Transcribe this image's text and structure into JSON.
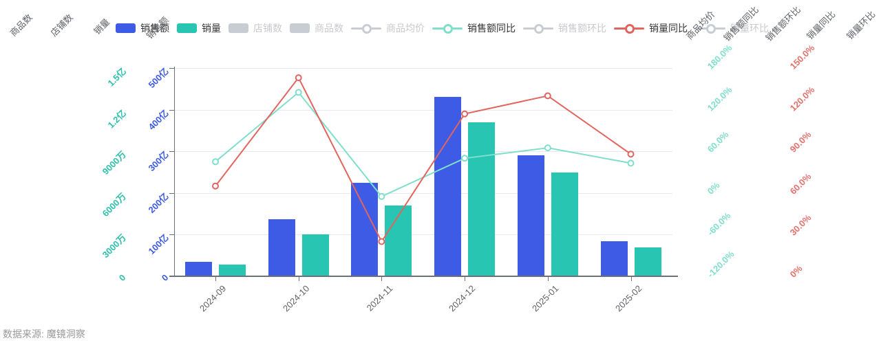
{
  "legend": {
    "items": [
      {
        "label": "销售额",
        "icon": "rect",
        "color": "#3d5be5",
        "active": true
      },
      {
        "label": "销量",
        "icon": "rect",
        "color": "#28c5b2",
        "active": true
      },
      {
        "label": "店铺数",
        "icon": "rect",
        "color": "#c8ccd3",
        "active": false
      },
      {
        "label": "商品数",
        "icon": "rect",
        "color": "#c8ccd3",
        "active": false
      },
      {
        "label": "商品均价",
        "icon": "line",
        "color": "#c8ccd3",
        "active": false
      },
      {
        "label": "销售额同比",
        "icon": "line",
        "color": "#7fdfcb",
        "active": true
      },
      {
        "label": "销售额环比",
        "icon": "line",
        "color": "#c8ccd3",
        "active": false
      },
      {
        "label": "销量同比",
        "icon": "line",
        "color": "#e2645f",
        "active": true
      },
      {
        "label": "销量环比",
        "icon": "line",
        "color": "#c8ccd3",
        "active": false
      }
    ]
  },
  "axis_names": {
    "left": [
      "商品数",
      "店铺数",
      "销量",
      "销售额"
    ],
    "right": [
      "商品均价",
      "销售额同比",
      "销售额环比",
      "销量同比",
      "销量环比"
    ]
  },
  "chart_data": {
    "type": "bar",
    "title": "",
    "categories": [
      "2024-09",
      "2024-10",
      "2024-11",
      "2024-12",
      "2025-01",
      "2025-02"
    ],
    "grid": true,
    "legend_position": "top",
    "y_axes": [
      {
        "id": "sales-amount",
        "name": "销售额",
        "side": "left",
        "color": "#3d5be5",
        "min": 0,
        "max": 500,
        "unit": "亿",
        "labels": [
          "0",
          "100亿",
          "200亿",
          "300亿",
          "400亿",
          "500亿"
        ]
      },
      {
        "id": "sales-count",
        "name": "销量",
        "side": "left",
        "color": "#2ec0ab",
        "min": 0,
        "max": 15000,
        "unit": "万",
        "labels": [
          "0",
          "3000万",
          "6000万",
          "9000万",
          "1.2亿",
          "1.5亿"
        ]
      },
      {
        "id": "yoy-amount",
        "name": "销售额同比",
        "side": "right",
        "color": "#7fdfcb",
        "min": -120,
        "max": 180,
        "unit": "%",
        "labels": [
          "-120.0%",
          "-60.0%",
          "0%",
          "60.0%",
          "120.0%",
          "180.0%"
        ]
      },
      {
        "id": "yoy-count",
        "name": "销量同比",
        "side": "right",
        "color": "#e4716c",
        "min": 0,
        "max": 150,
        "unit": "%",
        "labels": [
          "0%",
          "30.0%",
          "60.0%",
          "90.0%",
          "120.0%",
          "150.0%"
        ]
      }
    ],
    "series": [
      {
        "name": "销售额",
        "type": "bar",
        "axis": "sales-amount",
        "unit": "亿",
        "color": "#3d5be5",
        "values": [
          35,
          137,
          225,
          430,
          290,
          85
        ]
      },
      {
        "name": "销量",
        "type": "bar",
        "axis": "sales-count",
        "unit": "万",
        "color": "#28c5b2",
        "values": [
          850,
          3000,
          5100,
          11100,
          7500,
          2100
        ]
      },
      {
        "name": "销售额同比",
        "type": "line",
        "axis": "yoy-amount",
        "unit": "%",
        "color": "#7fdfcb",
        "values": [
          45,
          145,
          -5,
          50,
          65,
          43
        ]
      },
      {
        "name": "销量同比",
        "type": "line",
        "axis": "yoy-count",
        "unit": "%",
        "color": "#e2645f",
        "values": [
          65,
          143,
          25,
          117,
          130,
          88
        ]
      }
    ]
  },
  "source": {
    "label": "数据来源: 魔镜洞察"
  }
}
